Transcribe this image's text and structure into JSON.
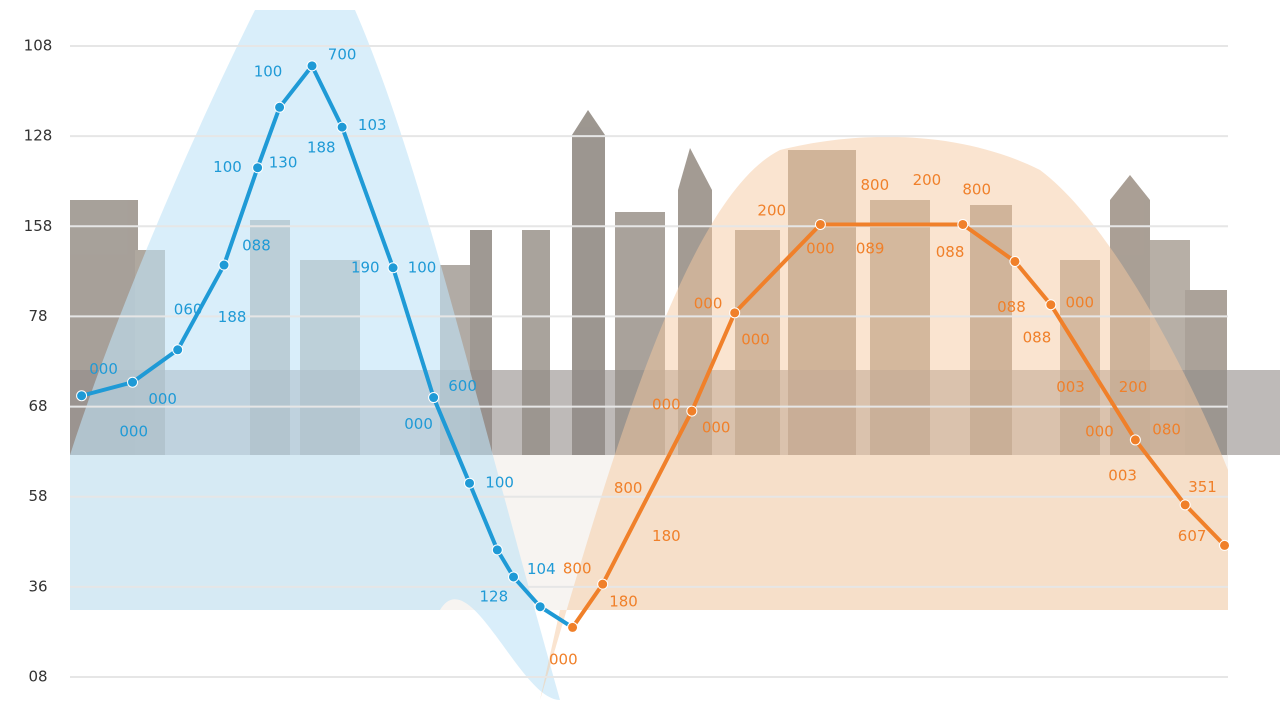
{
  "chart_data": {
    "type": "line",
    "xlim": [
      0,
      100
    ],
    "ylim": [
      0,
      7
    ],
    "yticks": [
      {
        "value": 7,
        "label": "108"
      },
      {
        "value": 6,
        "label": "128"
      },
      {
        "value": 5,
        "label": "158"
      },
      {
        "value": 4,
        "label": "78"
      },
      {
        "value": 3,
        "label": "68"
      },
      {
        "value": 2,
        "label": "58"
      },
      {
        "value": 1,
        "label": "36"
      },
      {
        "value": 0,
        "label": "08"
      }
    ],
    "grid": true,
    "series": [
      {
        "color": "#1f9ad6",
        "x": [
          1.0,
          5.4,
          9.3,
          13.3,
          16.2,
          18.1,
          20.9,
          23.5,
          27.9,
          31.4,
          34.5,
          36.9,
          38.3,
          40.6,
          43.4
        ],
        "values": [
          3.12,
          3.27,
          3.63,
          4.57,
          5.65,
          6.32,
          6.78,
          6.1,
          4.54,
          3.1,
          2.15,
          1.41,
          1.11,
          0.78,
          0.55
        ],
        "annotations": [
          {
            "text": "700",
            "x": 23.5,
            "y": 6.9
          },
          {
            "text": "100",
            "x": 17.1,
            "y": 6.71
          },
          {
            "text": "103",
            "x": 26.1,
            "y": 6.12
          },
          {
            "text": "188",
            "x": 21.7,
            "y": 5.87
          },
          {
            "text": "100",
            "x": 13.6,
            "y": 5.65
          },
          {
            "text": "130",
            "x": 18.4,
            "y": 5.7
          },
          {
            "text": "088",
            "x": 16.1,
            "y": 4.78
          },
          {
            "text": "190",
            "x": 25.5,
            "y": 4.54
          },
          {
            "text": "100",
            "x": 30.4,
            "y": 4.54
          },
          {
            "text": "060",
            "x": 10.2,
            "y": 4.07
          },
          {
            "text": "188",
            "x": 14.0,
            "y": 3.99
          },
          {
            "text": "000",
            "x": 2.9,
            "y": 3.41
          },
          {
            "text": "000",
            "x": 8.0,
            "y": 3.08
          },
          {
            "text": "000",
            "x": 5.5,
            "y": 2.72
          },
          {
            "text": "600",
            "x": 33.9,
            "y": 3.22
          },
          {
            "text": "000",
            "x": 30.1,
            "y": 2.8
          },
          {
            "text": "100",
            "x": 37.1,
            "y": 2.15
          },
          {
            "text": "104",
            "x": 40.7,
            "y": 1.19
          },
          {
            "text": "128",
            "x": 36.6,
            "y": 0.89
          }
        ]
      },
      {
        "color": "#f0802a",
        "x": [
          43.4,
          46.0,
          53.7,
          57.4,
          64.8,
          77.1,
          81.6,
          84.7,
          92.0,
          96.3,
          99.7
        ],
        "values": [
          0.55,
          1.03,
          2.95,
          4.04,
          5.02,
          5.02,
          4.61,
          4.13,
          2.63,
          1.91,
          1.46
        ],
        "annotations": [
          {
            "text": "200",
            "x": 74.0,
            "y": 5.51
          },
          {
            "text": "800",
            "x": 69.5,
            "y": 5.45
          },
          {
            "text": "800",
            "x": 78.3,
            "y": 5.4
          },
          {
            "text": "200",
            "x": 60.6,
            "y": 5.17
          },
          {
            "text": "000",
            "x": 64.8,
            "y": 4.75
          },
          {
            "text": "089",
            "x": 69.1,
            "y": 4.75
          },
          {
            "text": "088",
            "x": 76.0,
            "y": 4.71
          },
          {
            "text": "000",
            "x": 55.1,
            "y": 4.14
          },
          {
            "text": "000",
            "x": 59.2,
            "y": 3.74
          },
          {
            "text": "088",
            "x": 81.3,
            "y": 4.1
          },
          {
            "text": "000",
            "x": 87.2,
            "y": 4.15
          },
          {
            "text": "088",
            "x": 83.5,
            "y": 3.76
          },
          {
            "text": "003",
            "x": 86.4,
            "y": 3.21
          },
          {
            "text": "200",
            "x": 91.8,
            "y": 3.21
          },
          {
            "text": "000",
            "x": 88.9,
            "y": 2.72
          },
          {
            "text": "080",
            "x": 94.7,
            "y": 2.74
          },
          {
            "text": "003",
            "x": 90.9,
            "y": 2.23
          },
          {
            "text": "000",
            "x": 51.5,
            "y": 3.02
          },
          {
            "text": "000",
            "x": 55.8,
            "y": 2.76
          },
          {
            "text": "800",
            "x": 48.2,
            "y": 2.09
          },
          {
            "text": "180",
            "x": 51.5,
            "y": 1.56
          },
          {
            "text": "607",
            "x": 96.9,
            "y": 1.56
          },
          {
            "text": "351",
            "x": 97.8,
            "y": 2.1
          },
          {
            "text": "800",
            "x": 43.8,
            "y": 1.2
          },
          {
            "text": "180",
            "x": 47.8,
            "y": 0.83
          },
          {
            "text": "000",
            "x": 42.6,
            "y": 0.19
          }
        ]
      }
    ]
  }
}
